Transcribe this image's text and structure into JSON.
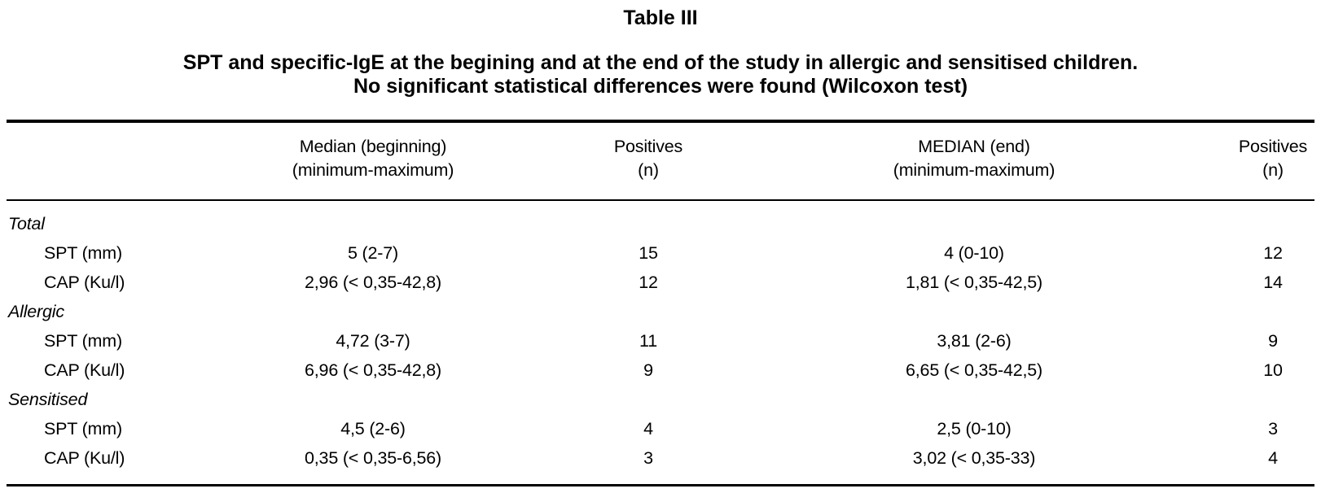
{
  "table": {
    "label": "Table III",
    "caption_line1": "SPT and specific-IgE at the begining and at the end of the study in allergic and sensitised children.",
    "caption_line2": "No significant statistical differences were found (Wilcoxon test)",
    "columns": [
      {
        "id": "parameter",
        "line1": "",
        "line2": ""
      },
      {
        "id": "median_beginning",
        "line1": "Median (beginning)",
        "line2": "(minimum-maximum)"
      },
      {
        "id": "positives_beginning",
        "line1": "Positives",
        "line2": "(n)"
      },
      {
        "id": "median_end",
        "line1": "MEDIAN (end)",
        "line2": "(minimum-maximum)"
      },
      {
        "id": "positives_end",
        "line1": "Positives",
        "line2": "(n)"
      }
    ],
    "groups": [
      {
        "name": "Total",
        "rows": [
          {
            "label": "SPT (mm)",
            "median_beginning": "5 (2-7)",
            "positives_beginning": "15",
            "median_end": "4 (0-10)",
            "positives_end": "12"
          },
          {
            "label": "CAP (Ku/l)",
            "median_beginning": "2,96 (< 0,35-42,8)",
            "positives_beginning": "12",
            "median_end": "1,81 (< 0,35-42,5)",
            "positives_end": "14"
          }
        ]
      },
      {
        "name": "Allergic",
        "rows": [
          {
            "label": "SPT (mm)",
            "median_beginning": "4,72 (3-7)",
            "positives_beginning": "11",
            "median_end": "3,81 (2-6)",
            "positives_end": "9"
          },
          {
            "label": "CAP (Ku/l)",
            "median_beginning": "6,96 (< 0,35-42,8)",
            "positives_beginning": "9",
            "median_end": "6,65 (< 0,35-42,5)",
            "positives_end": "10"
          }
        ]
      },
      {
        "name": "Sensitised",
        "rows": [
          {
            "label": "SPT (mm)",
            "median_beginning": "4,5 (2-6)",
            "positives_beginning": "4",
            "median_end": "2,5 (0-10)",
            "positives_end": "3"
          },
          {
            "label": "CAP (Ku/l)",
            "median_beginning": "0,35 (< 0,35-6,56)",
            "positives_beginning": "3",
            "median_end": "3,02 (< 0,35-33)",
            "positives_end": "4"
          }
        ]
      }
    ],
    "colors": {
      "text": "#000000",
      "background": "#ffffff",
      "rule": "#000000"
    }
  }
}
